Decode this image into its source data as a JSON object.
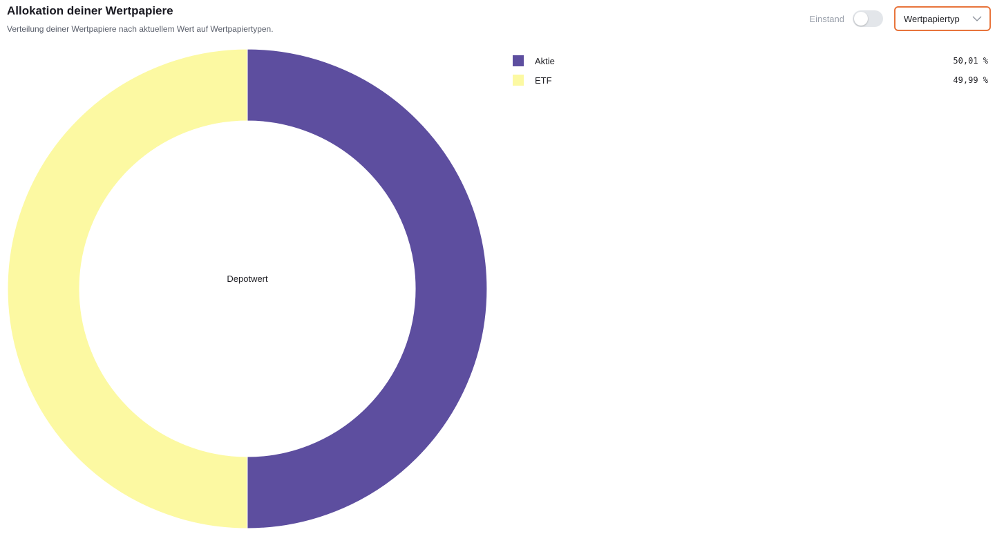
{
  "header": {
    "title": "Allokation deiner Wertpapiere",
    "subtitle": "Verteilung deiner Wertpapiere nach aktuellem Wert auf Wertpapiertypen."
  },
  "controls": {
    "toggle_label": "Einstand",
    "toggle_on": false,
    "select_value": "Wertpapiertyp",
    "accent_color": "#e8743b"
  },
  "chart_data": {
    "type": "pie",
    "variant": "donut",
    "center_label": "Depotwert",
    "categories": [
      "Aktie",
      "ETF"
    ],
    "values": [
      50.01,
      49.99
    ],
    "value_labels": [
      "50,01 %",
      "49,99 %"
    ],
    "colors": [
      "#5d4e9f",
      "#fcf9a2"
    ],
    "legend_position": "right"
  }
}
